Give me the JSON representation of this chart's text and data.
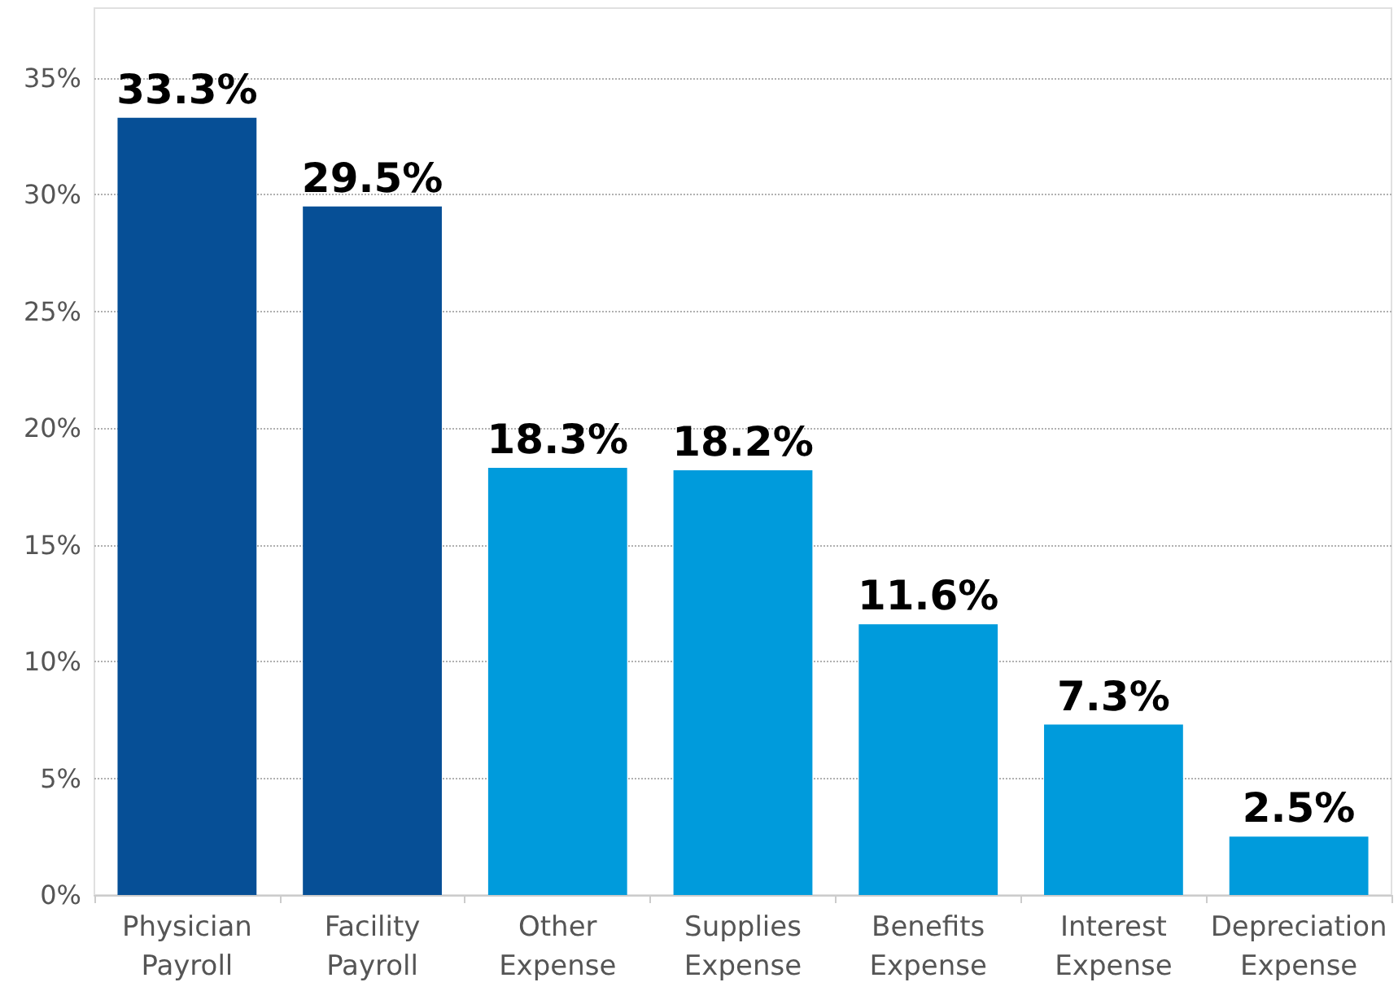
{
  "chart_data": {
    "type": "bar",
    "categories": [
      "Physician Payroll",
      "Facility Payroll",
      "Other Expense",
      "Supplies Expense",
      "Benefits Expense",
      "Interest Expense",
      "Depreciation Expense"
    ],
    "values": [
      33.3,
      29.5,
      18.3,
      18.2,
      11.6,
      7.3,
      2.5
    ],
    "value_labels": [
      "33.3%",
      "29.5%",
      "18.3%",
      "18.2%",
      "11.6%",
      "7.3%",
      "2.5%"
    ],
    "colors": [
      "#064f96",
      "#064f96",
      "#009bdc",
      "#009bdc",
      "#009bdc",
      "#009bdc",
      "#009bdc"
    ],
    "ylim": [
      0,
      38
    ],
    "yticks": [
      {
        "value": 0,
        "label": "0%"
      },
      {
        "value": 5,
        "label": "5%"
      },
      {
        "value": 10,
        "label": "10%"
      },
      {
        "value": 15,
        "label": "15%"
      },
      {
        "value": 20,
        "label": "20%"
      },
      {
        "value": 25,
        "label": "25%"
      },
      {
        "value": 30,
        "label": "30%"
      },
      {
        "value": 35,
        "label": "35%"
      }
    ],
    "grid": "y"
  }
}
